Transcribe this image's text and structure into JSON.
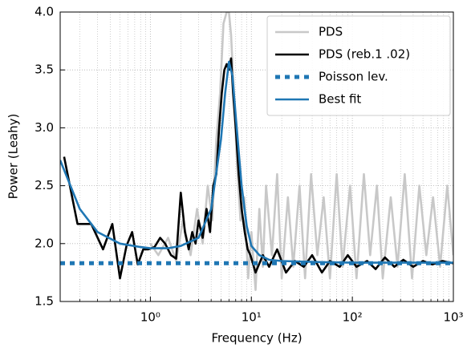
{
  "chart_data": {
    "type": "line",
    "xlabel": "Frequency (Hz)",
    "ylabel": "Power (Leahy)",
    "xscale": "log",
    "grid": true,
    "legend": "upper right",
    "xlim": [
      0.128,
      1000
    ],
    "ylim": [
      1.5,
      4.0
    ],
    "xticks": [
      {
        "value": 1,
        "label": "10⁰"
      },
      {
        "value": 10,
        "label": "10¹"
      },
      {
        "value": 100,
        "label": "10²"
      },
      {
        "value": 1000,
        "label": "10³"
      }
    ],
    "xminorticks": [
      0.2,
      0.3,
      0.4,
      0.5,
      0.6,
      0.7,
      0.8,
      0.9,
      2,
      3,
      4,
      5,
      6,
      7,
      8,
      9,
      20,
      30,
      40,
      50,
      60,
      70,
      80,
      90,
      200,
      300,
      400,
      500,
      600,
      700,
      800,
      900
    ],
    "yticks": [
      1.5,
      {
        "value": 2,
        "label": "2.0"
      },
      2.5,
      {
        "value": 3,
        "label": "3.0"
      },
      3.5,
      {
        "value": 4,
        "label": "4.0"
      }
    ],
    "series": [
      {
        "name": "PDS",
        "color": "#c8c8c8",
        "style": "solid",
        "x": [
          1,
          1.2,
          1.5,
          1.8,
          2.1,
          2.5,
          2.9,
          3.3,
          3.7,
          4.1,
          4.5,
          4.9,
          5.3,
          5.7,
          6.0,
          6.3,
          6.7,
          7.2,
          7.8,
          8.5,
          9.3,
          10,
          11,
          12,
          13,
          14,
          16,
          18,
          20,
          23,
          26,
          30,
          34,
          39,
          45,
          52,
          60,
          70,
          80,
          95,
          110,
          130,
          150,
          175,
          200,
          240,
          280,
          330,
          390,
          460,
          540,
          630,
          740,
          870,
          1000
        ],
        "values": [
          2.0,
          1.9,
          2.05,
          1.85,
          2.2,
          1.9,
          2.3,
          2.0,
          2.5,
          2.2,
          2.9,
          3.3,
          3.9,
          4.0,
          4.0,
          3.8,
          3.3,
          2.7,
          2.2,
          2.4,
          1.7,
          2.1,
          1.6,
          2.3,
          1.8,
          2.5,
          1.9,
          2.6,
          1.7,
          2.4,
          1.8,
          2.5,
          1.7,
          2.6,
          1.9,
          2.4,
          1.7,
          2.6,
          1.8,
          2.5,
          1.7,
          2.6,
          1.9,
          2.5,
          1.7,
          2.4,
          1.8,
          2.6,
          1.7,
          2.5,
          1.9,
          2.4,
          1.8,
          2.5,
          1.9
        ]
      },
      {
        "name": "PDS (reb.1 .02)",
        "color": "#000000",
        "style": "solid",
        "x": [
          0.14,
          0.19,
          0.26,
          0.34,
          0.42,
          0.5,
          0.58,
          0.66,
          0.75,
          0.85,
          0.95,
          1.1,
          1.25,
          1.4,
          1.6,
          1.8,
          2.0,
          2.2,
          2.4,
          2.6,
          2.8,
          3.0,
          3.3,
          3.6,
          3.9,
          4.2,
          4.5,
          4.8,
          5.1,
          5.4,
          5.7,
          6.0,
          6.3,
          6.6,
          7.0,
          7.5,
          8.0,
          8.6,
          9.2,
          9.8,
          11,
          13,
          15,
          18,
          22,
          27,
          33,
          40,
          50,
          60,
          75,
          90,
          110,
          140,
          170,
          210,
          260,
          320,
          400,
          500,
          620,
          780,
          1000
        ],
        "values": [
          2.75,
          2.17,
          2.17,
          1.95,
          2.17,
          1.7,
          1.98,
          2.1,
          1.82,
          1.95,
          1.95,
          1.97,
          2.05,
          2.0,
          1.9,
          1.87,
          2.44,
          2.1,
          1.95,
          2.1,
          2.0,
          2.2,
          2.05,
          2.3,
          2.1,
          2.5,
          2.6,
          3.0,
          3.3,
          3.5,
          3.55,
          3.5,
          3.6,
          3.3,
          3.0,
          2.6,
          2.3,
          2.1,
          1.95,
          1.9,
          1.75,
          1.9,
          1.8,
          1.95,
          1.75,
          1.85,
          1.8,
          1.9,
          1.75,
          1.85,
          1.8,
          1.9,
          1.8,
          1.85,
          1.78,
          1.88,
          1.8,
          1.86,
          1.8,
          1.85,
          1.82,
          1.85,
          1.83
        ]
      },
      {
        "name": "Poisson lev.",
        "color": "#1f77b4",
        "style": "dotted",
        "x": [
          0.128,
          1000
        ],
        "values": [
          1.83,
          1.83
        ]
      },
      {
        "name": "Best fit",
        "color": "#1f77b4",
        "style": "solid",
        "x": [
          0.128,
          0.2,
          0.3,
          0.5,
          0.8,
          1,
          1.5,
          2,
          3,
          4,
          5,
          5.5,
          6,
          6.5,
          7,
          8,
          9,
          10,
          12,
          15,
          20,
          50,
          100,
          1000
        ],
        "values": [
          2.72,
          2.3,
          2.1,
          2.0,
          1.97,
          1.96,
          1.96,
          1.98,
          2.05,
          2.3,
          2.9,
          3.3,
          3.57,
          3.45,
          3.1,
          2.5,
          2.15,
          1.98,
          1.9,
          1.86,
          1.85,
          1.84,
          1.835,
          1.835
        ]
      }
    ]
  }
}
